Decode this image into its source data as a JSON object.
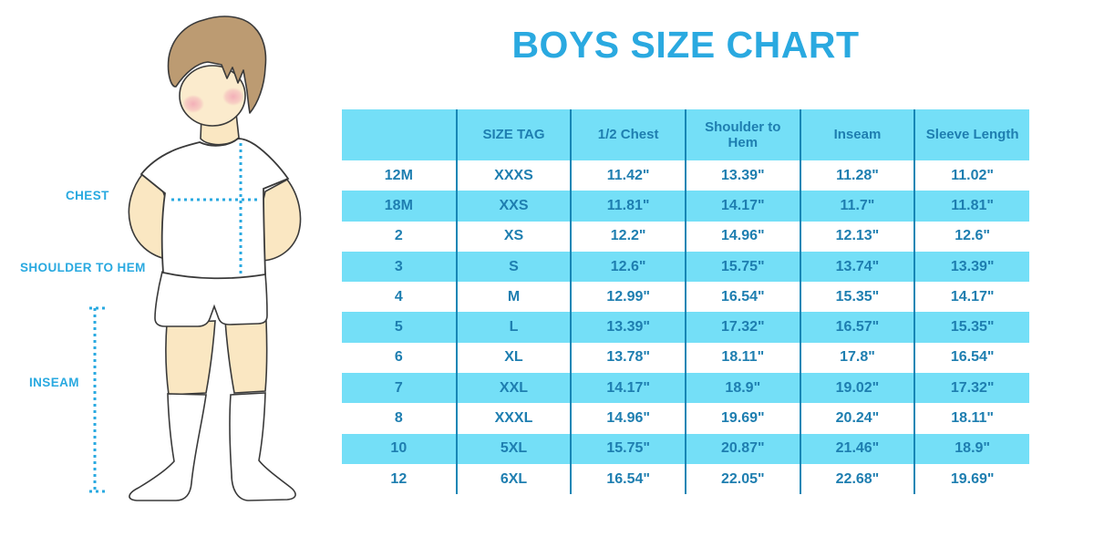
{
  "title": "BOYS SIZE CHART",
  "figure": {
    "labels": {
      "chest": "CHEST",
      "shoulder_to_hem": "SHOULDER TO HEM",
      "inseam": "INSEAM"
    }
  },
  "colors": {
    "accent_blue": "#29A9E0",
    "table_row_blue": "#74DFF7",
    "table_line_blue": "#1786B5",
    "table_text_blue": "#1E7EB0",
    "skin": "#FAE7C2",
    "hair": "#BC9B72",
    "blush": "#F2A9B6",
    "outline": "#3A3A3A"
  },
  "chart_data": {
    "type": "table",
    "title": "BOYS SIZE CHART",
    "columns": [
      "",
      "SIZE TAG",
      "1/2 Chest",
      "Shoulder to Hem",
      "Inseam",
      "Sleeve Length"
    ],
    "rows": [
      [
        "12M",
        "XXXS",
        "11.42\"",
        "13.39\"",
        "11.28\"",
        "11.02\""
      ],
      [
        "18M",
        "XXS",
        "11.81\"",
        "14.17\"",
        "11.7\"",
        "11.81\""
      ],
      [
        "2",
        "XS",
        "12.2\"",
        "14.96\"",
        "12.13\"",
        "12.6\""
      ],
      [
        "3",
        "S",
        "12.6\"",
        "15.75\"",
        "13.74\"",
        "13.39\""
      ],
      [
        "4",
        "M",
        "12.99\"",
        "16.54\"",
        "15.35\"",
        "14.17\""
      ],
      [
        "5",
        "L",
        "13.39\"",
        "17.32\"",
        "16.57\"",
        "15.35\""
      ],
      [
        "6",
        "XL",
        "13.78\"",
        "18.11\"",
        "17.8\"",
        "16.54\""
      ],
      [
        "7",
        "XXL",
        "14.17\"",
        "18.9\"",
        "19.02\"",
        "17.32\""
      ],
      [
        "8",
        "XXXL",
        "14.96\"",
        "19.69\"",
        "20.24\"",
        "18.11\""
      ],
      [
        "10",
        "5XL",
        "15.75\"",
        "20.87\"",
        "21.46\"",
        "18.9\""
      ],
      [
        "12",
        "6XL",
        "16.54\"",
        "22.05\"",
        "22.68\"",
        "19.69\""
      ]
    ]
  }
}
